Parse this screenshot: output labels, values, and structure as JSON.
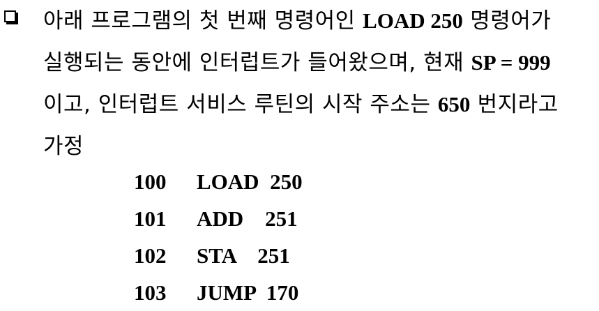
{
  "question": {
    "bullet_icon": "checkbox-square-icon",
    "lines": [
      [
        {
          "text": "아래 프로그램의 첫 번째 명령어인 ",
          "bold": false
        },
        {
          "text": "LOAD 250",
          "bold": true
        },
        {
          "text": " 명령어가",
          "bold": false
        }
      ],
      [
        {
          "text": "실행되는 동안에 인터럽트가 들어왔으며, 현재 ",
          "bold": false
        },
        {
          "text": "SP = 999",
          "bold": true
        }
      ],
      [
        {
          "text": "이고, 인터럽트 서비스 루틴의 시작 주소는 ",
          "bold": false
        },
        {
          "text": "650",
          "bold": true
        },
        {
          "text": " 번지라고",
          "bold": false
        }
      ],
      [
        {
          "text": "가정",
          "bold": false
        }
      ]
    ]
  },
  "program": [
    {
      "address": "100",
      "instruction": "LOAD  250"
    },
    {
      "address": "101",
      "instruction": "ADD    251"
    },
    {
      "address": "102",
      "instruction": "STA    251"
    },
    {
      "address": "103",
      "instruction": "JUMP  170"
    }
  ]
}
